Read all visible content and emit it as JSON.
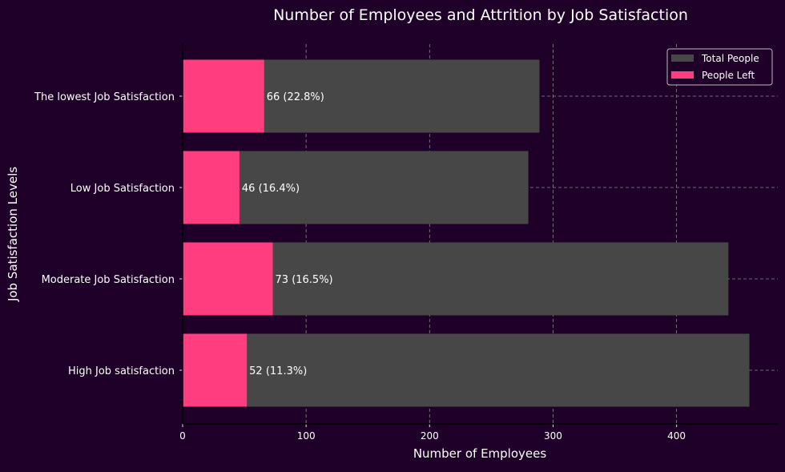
{
  "chart_data": {
    "type": "bar",
    "orientation": "horizontal",
    "title": "Number of Employees and Attrition by Job Satisfaction",
    "xlabel": "Number of Employees",
    "ylabel": "Job Satisfaction Levels",
    "categories": [
      "The lowest Job Satisfaction",
      "Low Job Satisfaction",
      "Moderate Job Satisfaction",
      "High Job satisfaction"
    ],
    "series": [
      {
        "name": "Total People",
        "values": [
          289,
          280,
          442,
          459
        ],
        "color": "#474747"
      },
      {
        "name": "People Left",
        "values": [
          66,
          46,
          73,
          52
        ],
        "color": "#ff3d7f"
      }
    ],
    "data_labels": [
      "66 (22.8%)",
      "46 (16.4%)",
      "73 (16.5%)",
      "52 (11.3%)"
    ],
    "xticks": [
      0,
      100,
      200,
      300,
      400
    ],
    "xlim": [
      0,
      482
    ],
    "grid": true,
    "legend_position": "top-right",
    "background": "#1f0028"
  }
}
